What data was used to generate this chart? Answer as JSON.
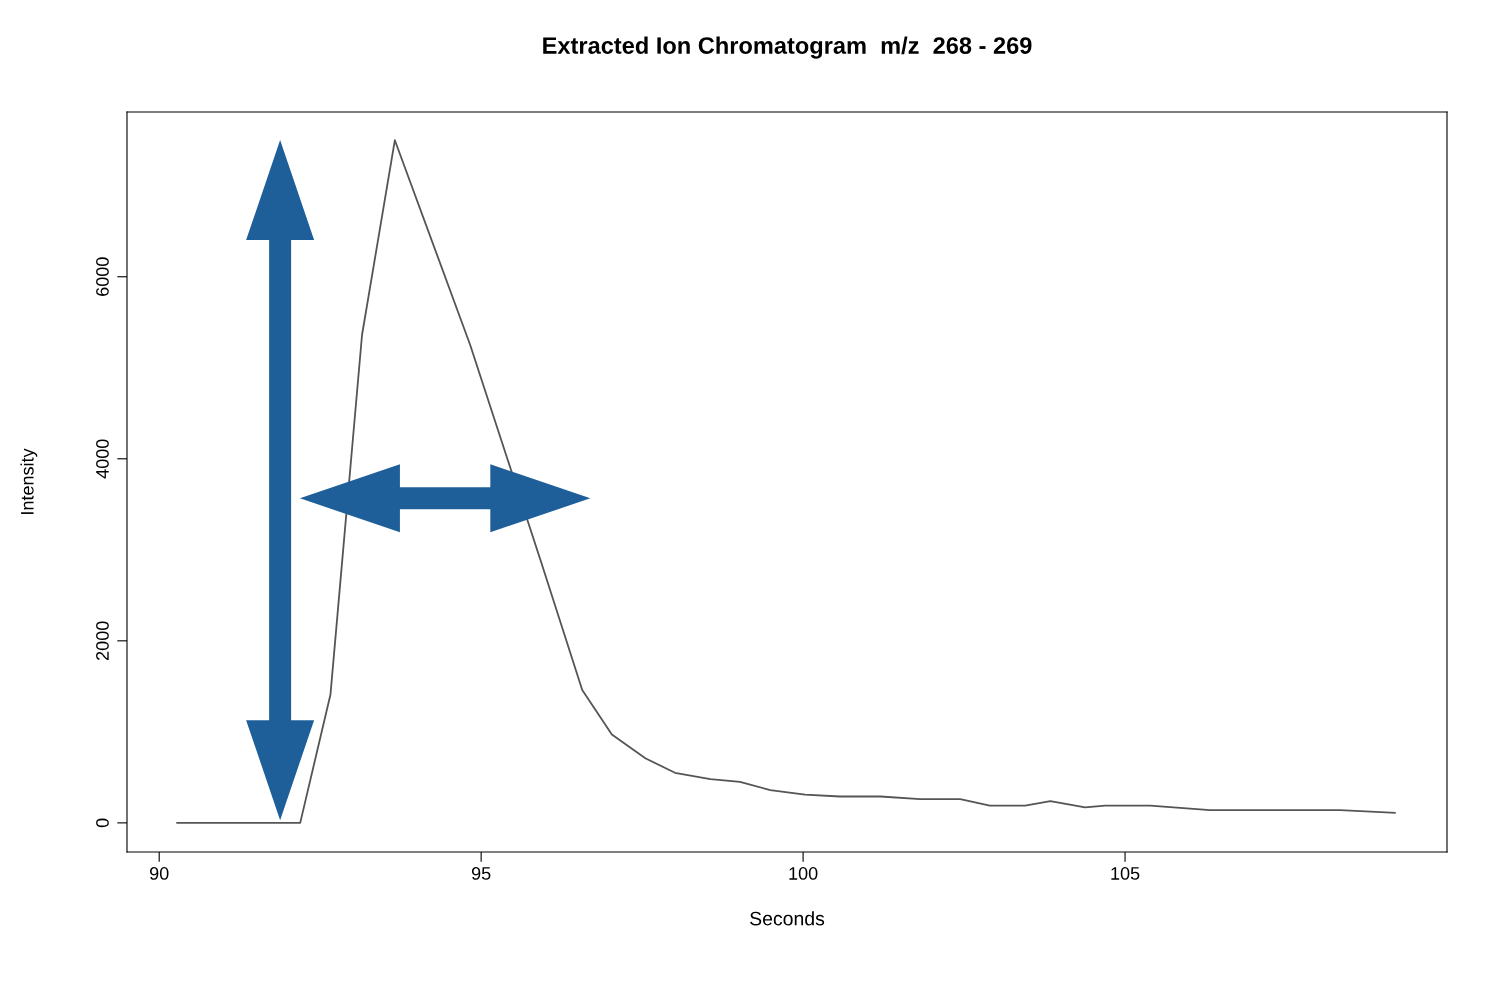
{
  "chart_data": {
    "type": "line",
    "title": "Extracted Ion Chromatogram  m/z  268 - 269",
    "xlabel": "Seconds",
    "ylabel": "Intensity",
    "x": [
      90.28,
      92.19,
      92.66,
      93.15,
      93.66,
      94.83,
      95.92,
      96.57,
      97.03,
      97.55,
      98.01,
      98.56,
      99.02,
      99.49,
      100.03,
      100.57,
      101.2,
      101.82,
      102.44,
      102.9,
      103.45,
      103.84,
      104.38,
      104.69,
      105.39,
      106.32,
      107.1,
      108.34,
      109.19
    ],
    "series": [
      {
        "color": "#555555",
        "values": [
          0,
          0,
          1410,
          5360,
          7500,
          5250,
          2890,
          1460,
          970,
          710,
          550,
          480,
          450,
          360,
          310,
          290,
          290,
          260,
          260,
          190,
          190,
          240,
          170,
          190,
          190,
          140,
          140,
          140,
          110
        ]
      }
    ],
    "xlim": [
      89.5,
      110
    ],
    "ylim": [
      -320,
      7810
    ],
    "xticks": [
      90,
      95,
      100,
      105
    ],
    "yticks": [
      0,
      2000,
      4000,
      6000
    ],
    "grid": false,
    "legend": false,
    "marker": "none",
    "line_style": "solid"
  }
}
